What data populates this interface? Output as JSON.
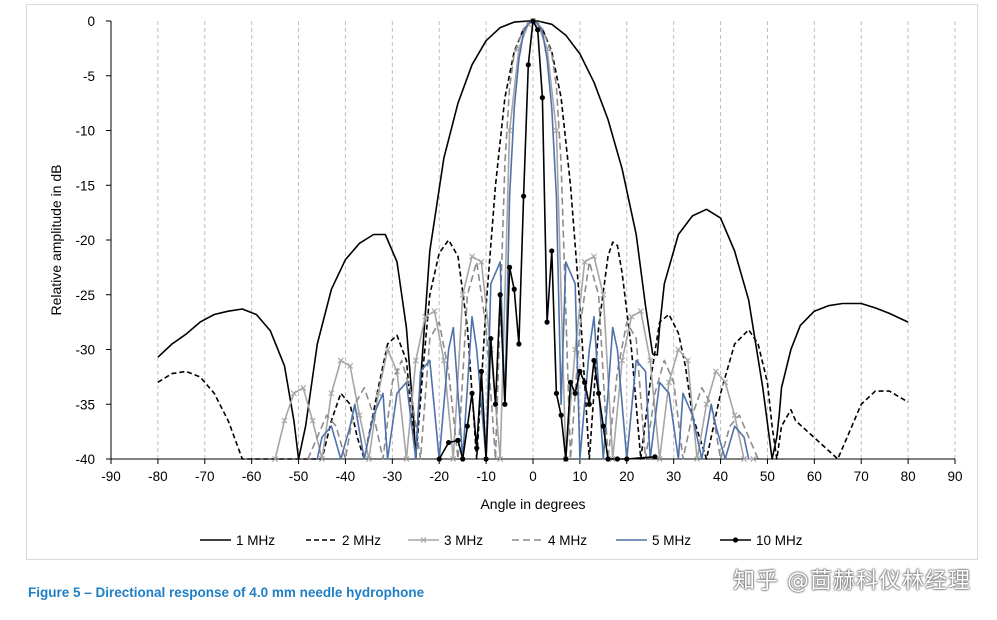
{
  "caption": "Figure 5 – Directional response of 4.0 mm needle hydrophone",
  "watermark": "知乎 @茴赫科仪林经理",
  "chart_data": {
    "type": "line",
    "title": "",
    "xlabel": "Angle in degrees",
    "ylabel": "Relative amplitude in dB",
    "xlim": [
      -90,
      90
    ],
    "ylim": [
      -40,
      0
    ],
    "xticks": [
      "-90",
      "-80",
      "-70",
      "-60",
      "-50",
      "-40",
      "-30",
      "-20",
      "-10",
      "0",
      "10",
      "20",
      "30",
      "40",
      "50",
      "60",
      "70",
      "80",
      "90"
    ],
    "yticks": [
      "0",
      "-5",
      "-10",
      "-15",
      "-20",
      "-25",
      "-30",
      "-35",
      "-40"
    ],
    "grid": "vertical dashed",
    "legend_position": "bottom",
    "series": [
      {
        "name": "1 MHz",
        "color": "#000000",
        "dash": "none",
        "marker": "none",
        "x": [
          -80,
          -77,
          -74,
          -71,
          -68,
          -65,
          -62,
          -59,
          -56,
          -53,
          -51,
          -50,
          -48.5,
          -46,
          -43,
          -40,
          -37,
          -34,
          -31.5,
          -29,
          -27,
          -25.5,
          -25,
          -24.5,
          -22,
          -19,
          -16,
          -13,
          -10,
          -7,
          -4,
          -1,
          0,
          1,
          4,
          7,
          10,
          13,
          16,
          19,
          22,
          24,
          25.5,
          26.5,
          27,
          28,
          31,
          34,
          37,
          40,
          43,
          46,
          49,
          51,
          52,
          52.5,
          53,
          55,
          57,
          60,
          63,
          66,
          70,
          73,
          76,
          80
        ],
        "y": [
          -30.7,
          -29.5,
          -28.6,
          -27.5,
          -26.8,
          -26.5,
          -26.3,
          -26.8,
          -28.3,
          -31.5,
          -36.5,
          -40,
          -37,
          -29.5,
          -24.5,
          -21.8,
          -20.3,
          -19.5,
          -19.5,
          -22,
          -28,
          -36,
          -40,
          -36,
          -21,
          -12.5,
          -7.5,
          -4,
          -1.8,
          -0.6,
          -0.1,
          0,
          0,
          0,
          -0.3,
          -1.3,
          -3,
          -5.6,
          -9,
          -13.5,
          -19.5,
          -26,
          -30.4,
          -30.5,
          -28,
          -24,
          -19.5,
          -17.8,
          -17.2,
          -18,
          -21,
          -25.5,
          -33.5,
          -40,
          -38,
          -36,
          -33.5,
          -30,
          -27.8,
          -26.5,
          -26,
          -25.8,
          -25.8,
          -26.2,
          -26.7,
          -27.5
        ]
      },
      {
        "name": "2 MHz",
        "color": "#000000",
        "dash": "5,3",
        "marker": "none",
        "x": [
          -80,
          -77,
          -74,
          -71,
          -68,
          -65,
          -62,
          -60,
          -45,
          -43,
          -41,
          -39,
          -37.5,
          -36,
          -33,
          -31,
          -29,
          -27,
          -25,
          -23.5,
          -22,
          -20,
          -18,
          -16,
          -14,
          -12,
          -10,
          -8,
          -6,
          -4,
          -2,
          0,
          2,
          4,
          6,
          8,
          10,
          12,
          14,
          16,
          17,
          18,
          19,
          21,
          23,
          25,
          27,
          29,
          31,
          32.5,
          34,
          37,
          40,
          43,
          46,
          48,
          50,
          51,
          52,
          53,
          55,
          56,
          65,
          67,
          70,
          73,
          76,
          80
        ],
        "y": [
          -33,
          -32.2,
          -32,
          -32.5,
          -34,
          -36.5,
          -40,
          -40,
          -40,
          -36.5,
          -34,
          -35,
          -38,
          -40,
          -33.5,
          -29.5,
          -28.7,
          -31,
          -40,
          -32,
          -25,
          -21.2,
          -20,
          -21.5,
          -28,
          -40,
          -26,
          -15,
          -7,
          -2.8,
          -0.7,
          0,
          -0.7,
          -2.8,
          -7,
          -15,
          -26,
          -40,
          -28,
          -21.5,
          -20.2,
          -20.5,
          -23,
          -30,
          -40,
          -33,
          -27.5,
          -26.8,
          -28.5,
          -31.5,
          -36,
          -40,
          -34,
          -29.5,
          -28.2,
          -29.5,
          -33,
          -37,
          -40,
          -37,
          -35.5,
          -36.5,
          -40,
          -38,
          -35,
          -33.8,
          -33.8,
          -34.8
        ]
      },
      {
        "name": "3 MHz",
        "color": "#a6a6a6",
        "dash": "none",
        "marker": "cross",
        "x": [
          -55,
          -53,
          -51,
          -49,
          -47,
          -45,
          -43,
          -41,
          -39,
          -37,
          -35,
          -33,
          -31,
          -29,
          -27,
          -25,
          -23,
          -21,
          -19,
          -17,
          -15,
          -13,
          -11,
          -9,
          -7,
          -5,
          -3,
          -1,
          0,
          1,
          3,
          5,
          7,
          9,
          11,
          13,
          15,
          17,
          19,
          21,
          23,
          25,
          27,
          29,
          31,
          33,
          35,
          37,
          39,
          41,
          43,
          45,
          47
        ],
        "y": [
          -40,
          -36.5,
          -34,
          -33.5,
          -36.5,
          -40,
          -34,
          -31,
          -31.5,
          -36,
          -40,
          -34,
          -30,
          -32,
          -40,
          -31,
          -27,
          -26.5,
          -31,
          -40,
          -25,
          -21.5,
          -22,
          -30,
          -40,
          -10,
          -2.5,
          -0.3,
          0,
          -0.3,
          -2.5,
          -10,
          -40,
          -30,
          -22,
          -21.5,
          -25,
          -40,
          -31,
          -27,
          -26.5,
          -31,
          -40,
          -33,
          -30,
          -31,
          -40,
          -35,
          -32,
          -33,
          -36,
          -40,
          -40
        ]
      },
      {
        "name": "4 MHz",
        "color": "#8c8c8c",
        "dash": "7,4",
        "marker": "none",
        "x": [
          -48,
          -46,
          -44,
          -42,
          -40,
          -38,
          -36,
          -34,
          -32,
          -30,
          -28,
          -26,
          -24,
          -22,
          -20,
          -18,
          -16,
          -14,
          -12,
          -10,
          -8,
          -6,
          -5,
          -4,
          -2,
          0,
          2,
          4,
          5,
          6,
          8,
          10,
          12,
          14,
          16,
          18,
          20,
          22,
          24,
          26,
          28,
          30,
          32,
          34,
          36,
          38,
          40,
          42,
          44,
          46,
          48
        ],
        "y": [
          -40,
          -38,
          -36,
          -37,
          -40,
          -35,
          -33.5,
          -36,
          -40,
          -33,
          -31,
          -34,
          -40,
          -29,
          -27.5,
          -32,
          -40,
          -25,
          -22,
          -28,
          -40,
          -13,
          -6,
          -3,
          -0.7,
          0,
          -0.7,
          -3,
          -6,
          -13,
          -40,
          -28,
          -22,
          -25,
          -40,
          -32,
          -27.5,
          -29,
          -40,
          -34,
          -31,
          -33,
          -40,
          -36,
          -33.5,
          -35,
          -40,
          -37,
          -36,
          -38,
          -40
        ]
      },
      {
        "name": "5 MHz",
        "color": "#4f73a8",
        "dash": "none",
        "marker": "none",
        "x": [
          -46,
          -45,
          -43,
          -41,
          -39,
          -38,
          -36,
          -34,
          -32,
          -31,
          -29,
          -27,
          -25,
          -24,
          -22,
          -20,
          -18,
          -17,
          -15,
          -13,
          -12,
          -10,
          -9,
          -7,
          -6,
          -5,
          -4,
          -3,
          -2,
          -1,
          0,
          1,
          2,
          3,
          4,
          5,
          6,
          7,
          9,
          10,
          12,
          13,
          15,
          17,
          18,
          20,
          22,
          24,
          25,
          27,
          29,
          31,
          32,
          34,
          36,
          38,
          39,
          41,
          43,
          45,
          46
        ],
        "y": [
          -40,
          -38,
          -37,
          -40,
          -37,
          -35,
          -40,
          -36,
          -34,
          -40,
          -34,
          -33,
          -40,
          -32,
          -31,
          -40,
          -30,
          -28,
          -40,
          -27,
          -30,
          -40,
          -24,
          -22,
          -35,
          -16,
          -8,
          -3.5,
          -1,
          -0.2,
          0,
          -0.2,
          -1,
          -3.5,
          -8,
          -16,
          -35,
          -22,
          -24,
          -40,
          -30,
          -27,
          -40,
          -28,
          -30,
          -40,
          -31,
          -32,
          -40,
          -33,
          -34,
          -40,
          -34,
          -36,
          -40,
          -35,
          -37,
          -40,
          -37,
          -38,
          -40
        ]
      },
      {
        "name": "10 MHz",
        "color": "#000000",
        "dash": "none",
        "marker": "dot",
        "x": [
          -20,
          -18,
          -16,
          -15,
          -14,
          -13,
          -12,
          -11,
          -10,
          -9,
          -8,
          -7,
          -6,
          -5,
          -4,
          -3,
          -2,
          -1,
          0,
          1,
          2,
          3,
          4,
          5,
          6,
          7,
          8,
          9,
          10,
          11,
          12,
          13,
          14,
          15,
          16,
          18,
          20,
          26
        ],
        "y": [
          -40,
          -38.5,
          -38.3,
          -40,
          -37,
          -34,
          -39,
          -32,
          -40,
          -29,
          -35,
          -25,
          -35,
          -22.5,
          -24.5,
          -29.5,
          -16,
          -4,
          0,
          -0.8,
          -7,
          -27.5,
          -21,
          -34,
          -36,
          -40,
          -33,
          -34,
          -32,
          -33,
          -35,
          -31,
          -34,
          -37,
          -40,
          -40,
          -40,
          -39.8
        ]
      }
    ]
  }
}
